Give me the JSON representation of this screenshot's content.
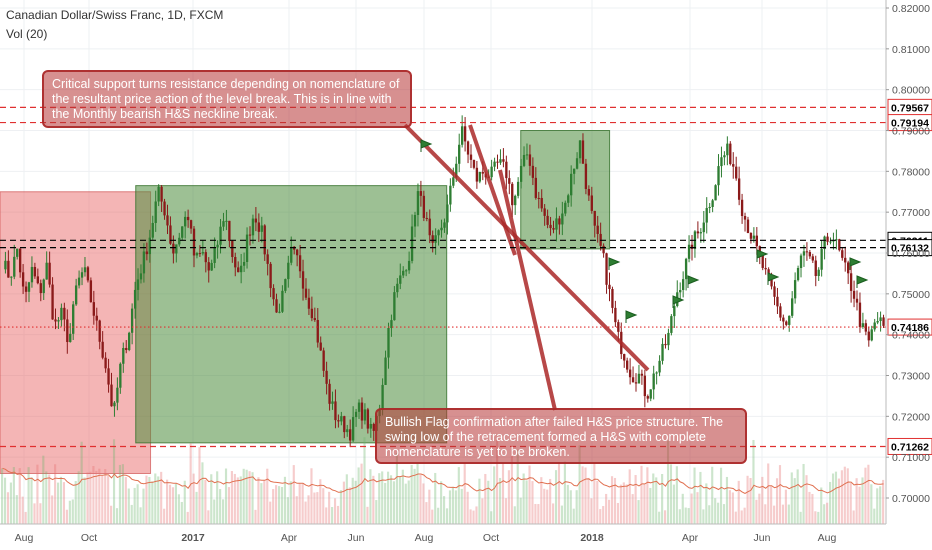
{
  "header": {
    "symbol": "Canadian Dollar/Swiss Franc, 1D, FXCM",
    "volume_label": "Vol (20)"
  },
  "annotations": {
    "resistance_note": "Critical support turns resistance depending on nomenclature of the resultant price action of the level break. This is in line with the Monthly bearish H&S neckline break.",
    "flag_note": "Bullish Flag confirmation after failed H&S price structure. The swing low of the retracement formed a H&S with complete nomenclature is yet to be broken."
  },
  "chart_data": {
    "type": "candlestick",
    "title": "Canadian Dollar/Swiss Franc, 1D, FXCM",
    "x_tick_labels": [
      "Aug",
      "Oct",
      "2017",
      "Apr",
      "Jun",
      "Aug",
      "Oct",
      "2018",
      "Apr",
      "Jun",
      "Aug"
    ],
    "y_tick_labels": [
      "0.82000",
      "0.81000",
      "0.80000",
      "0.79000",
      "0.78000",
      "0.77000",
      "0.76000",
      "0.75000",
      "0.74000",
      "0.73000",
      "0.72000",
      "0.71000",
      "0.70000"
    ],
    "ylim": [
      0.6975,
      0.822
    ],
    "price_levels": [
      {
        "value": 0.79567,
        "label": "0.79567",
        "style": "dashed",
        "color": "#e03030"
      },
      {
        "value": 0.79194,
        "label": "0.79194",
        "style": "dashed",
        "color": "#e03030"
      },
      {
        "value": 0.76311,
        "label": "0.76311",
        "style": "dashed",
        "color": "#000000"
      },
      {
        "value": 0.76132,
        "label": "0.76132",
        "style": "dashed",
        "color": "#000000"
      },
      {
        "value": 0.74186,
        "label": "0.74186",
        "style": "dotted",
        "color": "#e03030"
      },
      {
        "value": 0.71262,
        "label": "0.71262",
        "style": "dashed",
        "color": "#e03030"
      }
    ],
    "price_path": [
      0.758,
      0.754,
      0.761,
      0.748,
      0.756,
      0.75,
      0.757,
      0.742,
      0.745,
      0.738,
      0.752,
      0.756,
      0.748,
      0.74,
      0.732,
      0.72,
      0.733,
      0.74,
      0.752,
      0.758,
      0.765,
      0.775,
      0.77,
      0.76,
      0.765,
      0.77,
      0.758,
      0.76,
      0.755,
      0.762,
      0.77,
      0.76,
      0.753,
      0.763,
      0.77,
      0.765,
      0.755,
      0.745,
      0.75,
      0.76,
      0.758,
      0.75,
      0.745,
      0.735,
      0.725,
      0.72,
      0.718,
      0.716,
      0.722,
      0.72,
      0.715,
      0.723,
      0.74,
      0.75,
      0.755,
      0.76,
      0.775,
      0.77,
      0.76,
      0.765,
      0.77,
      0.78,
      0.79,
      0.784,
      0.778,
      0.78,
      0.779,
      0.782,
      0.78,
      0.772,
      0.78,
      0.785,
      0.775,
      0.77,
      0.765,
      0.768,
      0.772,
      0.78,
      0.787,
      0.775,
      0.765,
      0.76,
      0.75,
      0.74,
      0.735,
      0.73,
      0.73,
      0.725,
      0.73,
      0.735,
      0.74,
      0.75,
      0.755,
      0.762,
      0.765,
      0.77,
      0.775,
      0.783,
      0.785,
      0.78,
      0.77,
      0.765,
      0.76,
      0.755,
      0.75,
      0.745,
      0.742,
      0.752,
      0.76,
      0.758,
      0.754,
      0.762,
      0.765,
      0.76,
      0.755,
      0.75,
      0.742,
      0.738,
      0.744,
      0.7419
    ],
    "volume_series": {
      "name": "Vol (20)",
      "has_moving_average": true
    },
    "shaded_zones": [
      {
        "color": "red",
        "from_index": 0,
        "to_index": 20,
        "price_top": 0.775,
        "price_bottom": 0.706
      },
      {
        "color": "green",
        "from_index": 18,
        "to_index": 60,
        "price_top": 0.7765,
        "price_bottom": 0.7135
      },
      {
        "color": "green",
        "from_index": 70,
        "to_index": 82,
        "price_top": 0.79,
        "price_bottom": 0.761
      }
    ],
    "grid": true,
    "legend_position": "none"
  }
}
